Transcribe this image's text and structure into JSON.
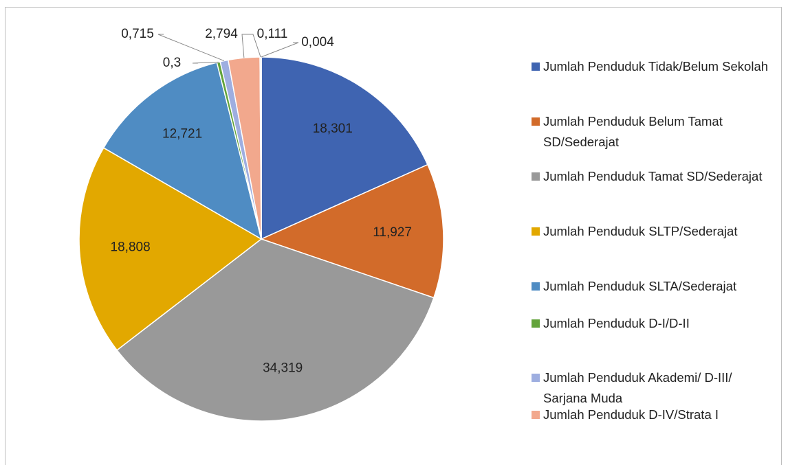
{
  "chart_data": {
    "type": "pie",
    "categories": [
      "Jumlah Penduduk Tidak/Belum Sekolah",
      "Jumlah Penduduk Belum Tamat SD/Sederajat",
      "Jumlah Penduduk Tamat SD/Sederajat",
      "Jumlah Penduduk SLTP/Sederajat",
      "Jumlah Penduduk SLTA/Sederajat",
      "Jumlah Penduduk D-I/D-II",
      "Jumlah Penduduk Akademi/ D-III/ Sarjana Muda",
      "Jumlah Penduduk D-IV/Strata I",
      null,
      null
    ],
    "values": [
      18.301,
      11.927,
      34.319,
      18.808,
      12.721,
      0.3,
      0.715,
      2.794,
      0.111,
      0.004
    ],
    "value_labels": [
      "18,301",
      "11,927",
      "34,319",
      "18,808",
      "12,721",
      "0,3",
      "0,715",
      "2,794",
      "0,111",
      "0,004"
    ],
    "colors": [
      "#3f64b1",
      "#d26b2a",
      "#999999",
      "#e2a800",
      "#4f8cc3",
      "#63a43b",
      "#9eaee0",
      "#f2a88d",
      "#c4c4c4",
      "#f3c96a"
    ],
    "legend": "right"
  }
}
